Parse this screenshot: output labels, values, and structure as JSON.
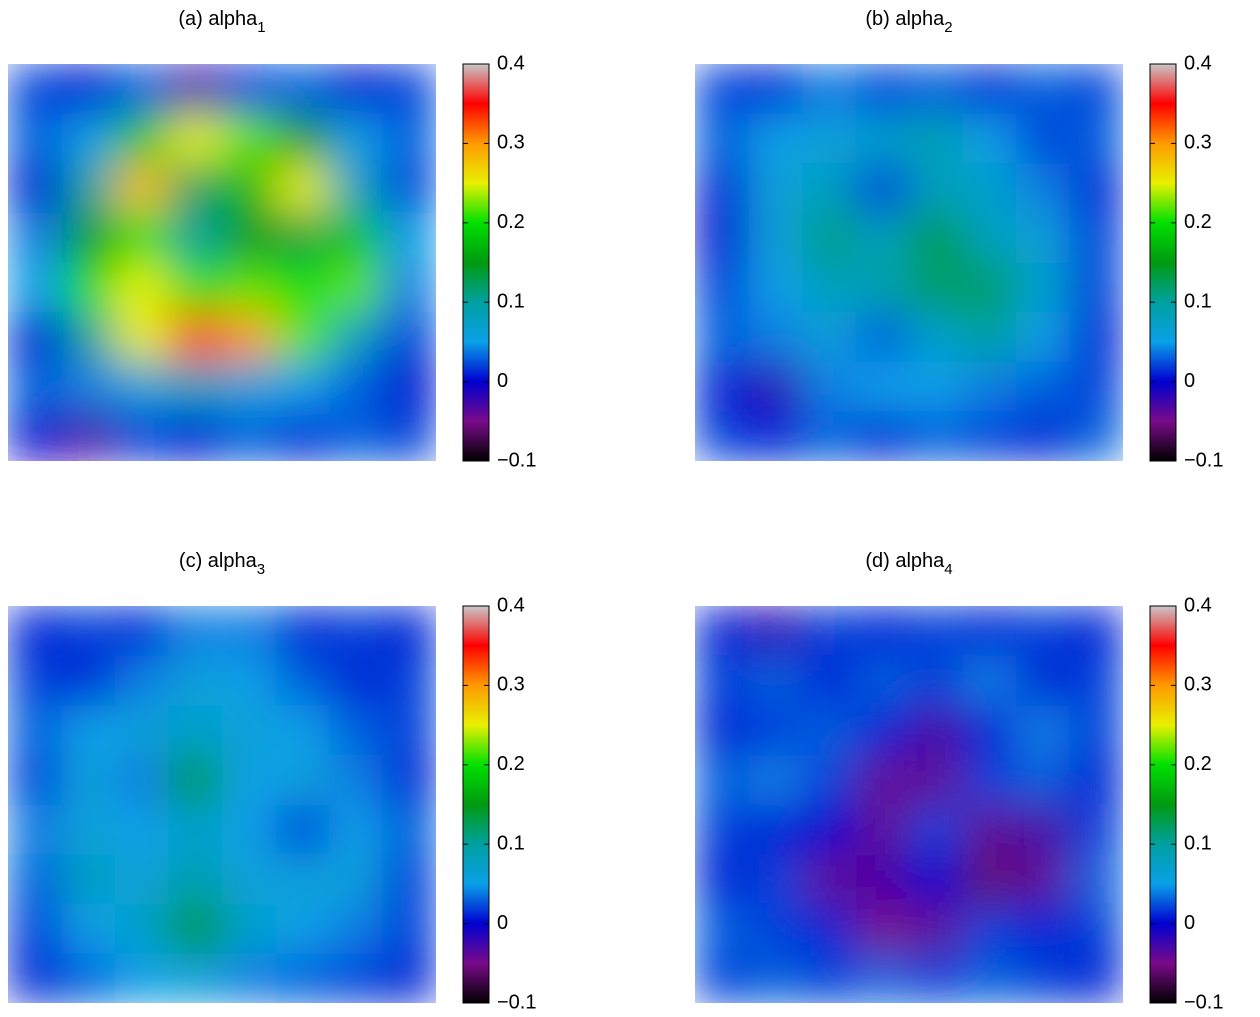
{
  "chart_data": [
    {
      "type": "heatmap",
      "title": "(a) alpha",
      "title_subscript": "1",
      "clim": [
        -0.1,
        0.4
      ],
      "cticks": [
        {
          "value": -0.1,
          "label": "−0.1"
        },
        0,
        0.1,
        0.2,
        0.3,
        0.4
      ],
      "colormap": [
        "#000000",
        "#7a0a8a",
        "#0000d0",
        "#0aa0e8",
        "#00a0a0",
        "#009a10",
        "#00e000",
        "#e8f000",
        "#ff9a00",
        "#ff0000",
        "#c8c8c8"
      ],
      "z": [
        [
          0.02,
          0.0,
          0.03,
          -0.03,
          0.02,
          0.03,
          0.0,
          0.02
        ],
        [
          0.03,
          0.05,
          0.18,
          0.25,
          0.22,
          0.15,
          0.05,
          0.03
        ],
        [
          0.0,
          0.1,
          0.28,
          0.12,
          0.17,
          0.25,
          0.08,
          0.02
        ],
        [
          0.04,
          0.15,
          0.2,
          0.1,
          0.15,
          0.13,
          0.18,
          0.05
        ],
        [
          0.05,
          0.2,
          0.25,
          0.2,
          0.22,
          0.2,
          0.22,
          0.04
        ],
        [
          0.0,
          0.1,
          0.25,
          0.33,
          0.3,
          0.22,
          0.08,
          0.02
        ],
        [
          0.03,
          0.04,
          0.06,
          0.08,
          0.06,
          0.05,
          0.03,
          0.0
        ],
        [
          0.0,
          -0.03,
          0.02,
          0.0,
          0.03,
          0.01,
          0.03,
          0.02
        ]
      ]
    },
    {
      "type": "heatmap",
      "title": "(b) alpha",
      "title_subscript": "2",
      "clim": [
        -0.1,
        0.4
      ],
      "cticks": [
        {
          "value": -0.1,
          "label": "−0.1"
        },
        0,
        0.1,
        0.2,
        0.3,
        0.4
      ],
      "colormap": [
        "#000000",
        "#7a0a8a",
        "#0000d0",
        "#0aa0e8",
        "#00a0a0",
        "#009a10",
        "#00e000",
        "#e8f000",
        "#ff9a00",
        "#ff0000",
        "#c8c8c8"
      ],
      "z": [
        [
          0.02,
          0.01,
          0.04,
          0.02,
          0.03,
          0.01,
          0.03,
          0.02
        ],
        [
          0.03,
          0.05,
          0.06,
          0.07,
          0.09,
          0.05,
          0.02,
          0.03
        ],
        [
          0.01,
          0.06,
          0.08,
          0.02,
          0.08,
          0.07,
          0.04,
          0.01
        ],
        [
          0.0,
          0.06,
          0.11,
          0.08,
          0.13,
          0.08,
          0.06,
          0.02
        ],
        [
          0.02,
          0.05,
          0.08,
          0.09,
          0.12,
          0.12,
          0.07,
          0.02
        ],
        [
          0.03,
          0.04,
          0.06,
          0.03,
          0.07,
          0.1,
          0.05,
          0.01
        ],
        [
          0.01,
          -0.02,
          0.04,
          0.05,
          0.05,
          0.04,
          0.03,
          0.02
        ],
        [
          0.02,
          0.01,
          0.03,
          0.01,
          0.03,
          0.02,
          0.01,
          0.03
        ]
      ]
    },
    {
      "type": "heatmap",
      "title": "(c) alpha",
      "title_subscript": "3",
      "clim": [
        -0.1,
        0.4
      ],
      "cticks": [
        {
          "value": -0.1,
          "label": "−0.1"
        },
        0,
        0.1,
        0.2,
        0.3,
        0.4
      ],
      "colormap": [
        "#000000",
        "#7a0a8a",
        "#0000d0",
        "#0aa0e8",
        "#00a0a0",
        "#009a10",
        "#00e000",
        "#e8f000",
        "#ff9a00",
        "#ff0000",
        "#c8c8c8"
      ],
      "z": [
        [
          0.01,
          0.02,
          0.01,
          0.04,
          0.04,
          0.01,
          0.02,
          0.01
        ],
        [
          0.02,
          0.01,
          0.04,
          0.06,
          0.05,
          0.03,
          0.01,
          0.02
        ],
        [
          0.03,
          0.05,
          0.06,
          0.07,
          0.06,
          0.05,
          0.03,
          0.02
        ],
        [
          0.02,
          0.06,
          0.04,
          0.14,
          0.05,
          0.06,
          0.04,
          0.01
        ],
        [
          0.04,
          0.06,
          0.05,
          0.07,
          0.05,
          0.02,
          0.05,
          0.03
        ],
        [
          0.03,
          0.08,
          0.06,
          0.09,
          0.06,
          0.06,
          0.06,
          0.02
        ],
        [
          0.02,
          0.05,
          0.07,
          0.15,
          0.07,
          0.05,
          0.04,
          0.02
        ],
        [
          0.01,
          0.03,
          0.05,
          0.06,
          0.04,
          0.03,
          0.02,
          0.01
        ]
      ]
    },
    {
      "type": "heatmap",
      "title": "(d) alpha",
      "title_subscript": "4",
      "clim": [
        -0.1,
        0.4
      ],
      "cticks": [
        {
          "value": -0.1,
          "label": "−0.1"
        },
        0,
        0.1,
        0.2,
        0.3,
        0.4
      ],
      "colormap": [
        "#000000",
        "#7a0a8a",
        "#0000d0",
        "#0aa0e8",
        "#00a0a0",
        "#009a10",
        "#00e000",
        "#e8f000",
        "#ff9a00",
        "#ff0000",
        "#c8c8c8"
      ],
      "z": [
        [
          0.01,
          -0.02,
          0.02,
          0.01,
          0.02,
          0.01,
          0.02,
          0.01
        ],
        [
          0.02,
          0.03,
          0.01,
          0.03,
          0.02,
          0.04,
          0.01,
          0.02
        ],
        [
          0.01,
          0.02,
          0.03,
          0.01,
          -0.03,
          0.01,
          0.04,
          0.02
        ],
        [
          0.03,
          0.04,
          0.02,
          -0.04,
          -0.04,
          0.02,
          0.03,
          0.01
        ],
        [
          0.02,
          0.01,
          0.0,
          -0.04,
          0.02,
          -0.04,
          -0.03,
          0.02
        ],
        [
          0.01,
          0.02,
          -0.04,
          -0.03,
          0.0,
          -0.06,
          -0.04,
          0.03
        ],
        [
          0.03,
          0.02,
          0.01,
          -0.05,
          -0.04,
          0.02,
          0.01,
          0.02
        ],
        [
          0.02,
          0.03,
          0.02,
          0.03,
          0.02,
          0.03,
          0.02,
          0.01
        ]
      ]
    }
  ]
}
